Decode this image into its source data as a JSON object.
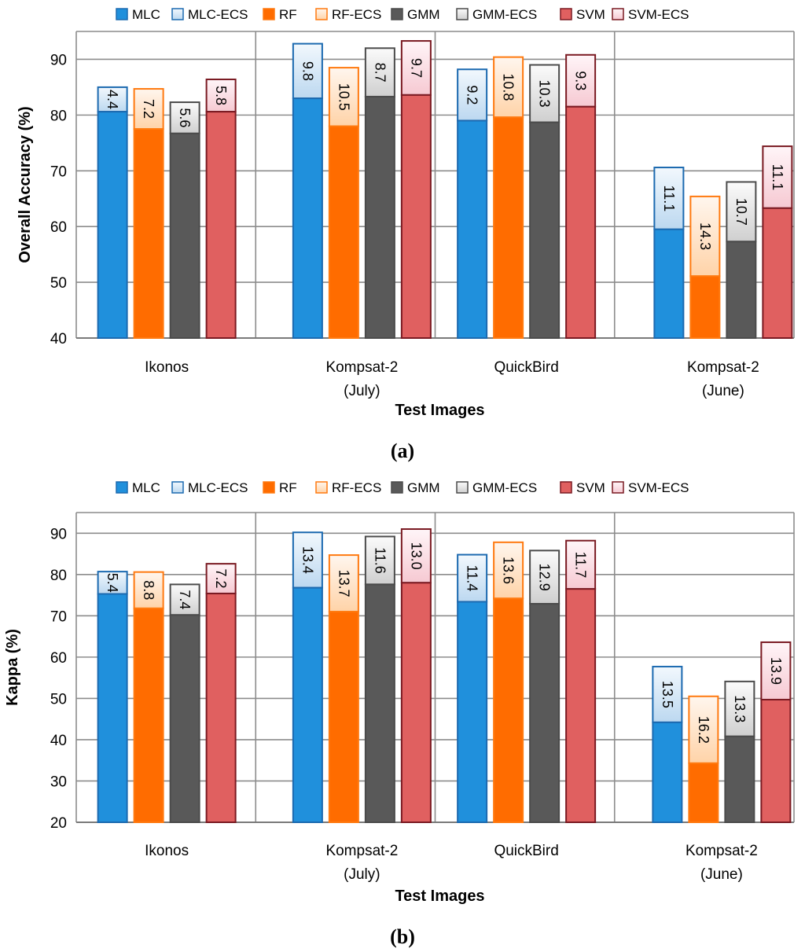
{
  "colors": {
    "MLC": {
      "base": "#2090dc",
      "ecs": "#cfe4f6",
      "stroke": "#1c6ab0"
    },
    "RF": {
      "base": "#ff6c00",
      "ecs": "#ffe2c4",
      "stroke": "#ff7a10"
    },
    "GMM": {
      "base": "#595959",
      "ecs": "#e6e6e6",
      "stroke": "#4b4b4b"
    },
    "SVM": {
      "base": "#e06060",
      "ecs": "#fce0e6",
      "stroke": "#7a1a22"
    }
  },
  "legend": [
    "MLC",
    "MLC-ECS",
    "RF",
    "RF-ECS",
    "GMM",
    "GMM-ECS",
    "SVM",
    "SVM-ECS"
  ],
  "chart_data": [
    {
      "type": "bar",
      "panel": "(a)",
      "title": "",
      "xlabel": "Test Images",
      "ylabel": "Overall Accuracy (%)",
      "ylim": [
        40,
        95
      ],
      "yticks": [
        40,
        50,
        60,
        70,
        80,
        90
      ],
      "categories": [
        [
          "Ikonos"
        ],
        [
          "Kompsat-2",
          "(July)"
        ],
        [
          "QuickBird"
        ],
        [
          "Kompsat-2",
          "(June)"
        ]
      ],
      "series": [
        {
          "name": "MLC",
          "values": [
            80.6,
            83.0,
            79.0,
            59.5
          ]
        },
        {
          "name": "RF",
          "values": [
            77.5,
            78.0,
            79.6,
            51.1
          ]
        },
        {
          "name": "GMM",
          "values": [
            76.7,
            83.3,
            78.7,
            57.3
          ]
        },
        {
          "name": "SVM",
          "values": [
            80.6,
            83.6,
            81.5,
            63.3
          ]
        }
      ],
      "ecs_gain": [
        {
          "name": "MLC-ECS",
          "values": [
            4.4,
            9.8,
            9.2,
            11.1
          ],
          "labels": [
            "4.4",
            "9.8",
            "9.2",
            "11.1"
          ]
        },
        {
          "name": "RF-ECS",
          "values": [
            7.2,
            10.5,
            10.8,
            14.3
          ],
          "labels": [
            "7.2",
            "10.5",
            "10.8",
            "14.3"
          ]
        },
        {
          "name": "GMM-ECS",
          "values": [
            5.6,
            8.7,
            10.3,
            10.7
          ],
          "labels": [
            "5.6",
            "8.7",
            "10.3",
            "10.7"
          ]
        },
        {
          "name": "SVM-ECS",
          "values": [
            5.8,
            9.7,
            9.3,
            11.1
          ],
          "labels": [
            "5.8",
            "9.7",
            "9.3",
            "11.1"
          ]
        }
      ]
    },
    {
      "type": "bar",
      "panel": "(b)",
      "title": "",
      "xlabel": "Test Images",
      "ylabel": "Kappa (%)",
      "ylim": [
        20,
        95
      ],
      "yticks": [
        20,
        30,
        40,
        50,
        60,
        70,
        80,
        90
      ],
      "categories": [
        [
          "Ikonos"
        ],
        [
          "Kompsat-2",
          "(July)"
        ],
        [
          "QuickBird"
        ],
        [
          "Kompsat-2",
          "(June)"
        ]
      ],
      "series": [
        {
          "name": "MLC",
          "values": [
            75.3,
            76.8,
            73.4,
            44.2
          ]
        },
        {
          "name": "RF",
          "values": [
            71.8,
            71.0,
            74.2,
            34.3
          ]
        },
        {
          "name": "GMM",
          "values": [
            70.2,
            77.6,
            72.9,
            40.8
          ]
        },
        {
          "name": "SVM",
          "values": [
            75.4,
            78.0,
            76.5,
            49.7
          ]
        }
      ],
      "ecs_gain": [
        {
          "name": "MLC-ECS",
          "values": [
            5.4,
            13.4,
            11.4,
            13.5
          ],
          "labels": [
            "5.4",
            "13.4",
            "11.4",
            "13.5"
          ]
        },
        {
          "name": "RF-ECS",
          "values": [
            8.8,
            13.7,
            13.6,
            16.2
          ],
          "labels": [
            "8.8",
            "13.7",
            "13.6",
            "16.2"
          ]
        },
        {
          "name": "GMM-ECS",
          "values": [
            7.4,
            11.6,
            12.9,
            13.3
          ],
          "labels": [
            "7.4",
            "11.6",
            "12.9",
            "13.3"
          ]
        },
        {
          "name": "SVM-ECS",
          "values": [
            7.2,
            13.0,
            11.7,
            13.9
          ],
          "labels": [
            "7.2",
            "13.0",
            "11.7",
            "13.9"
          ]
        }
      ]
    }
  ]
}
